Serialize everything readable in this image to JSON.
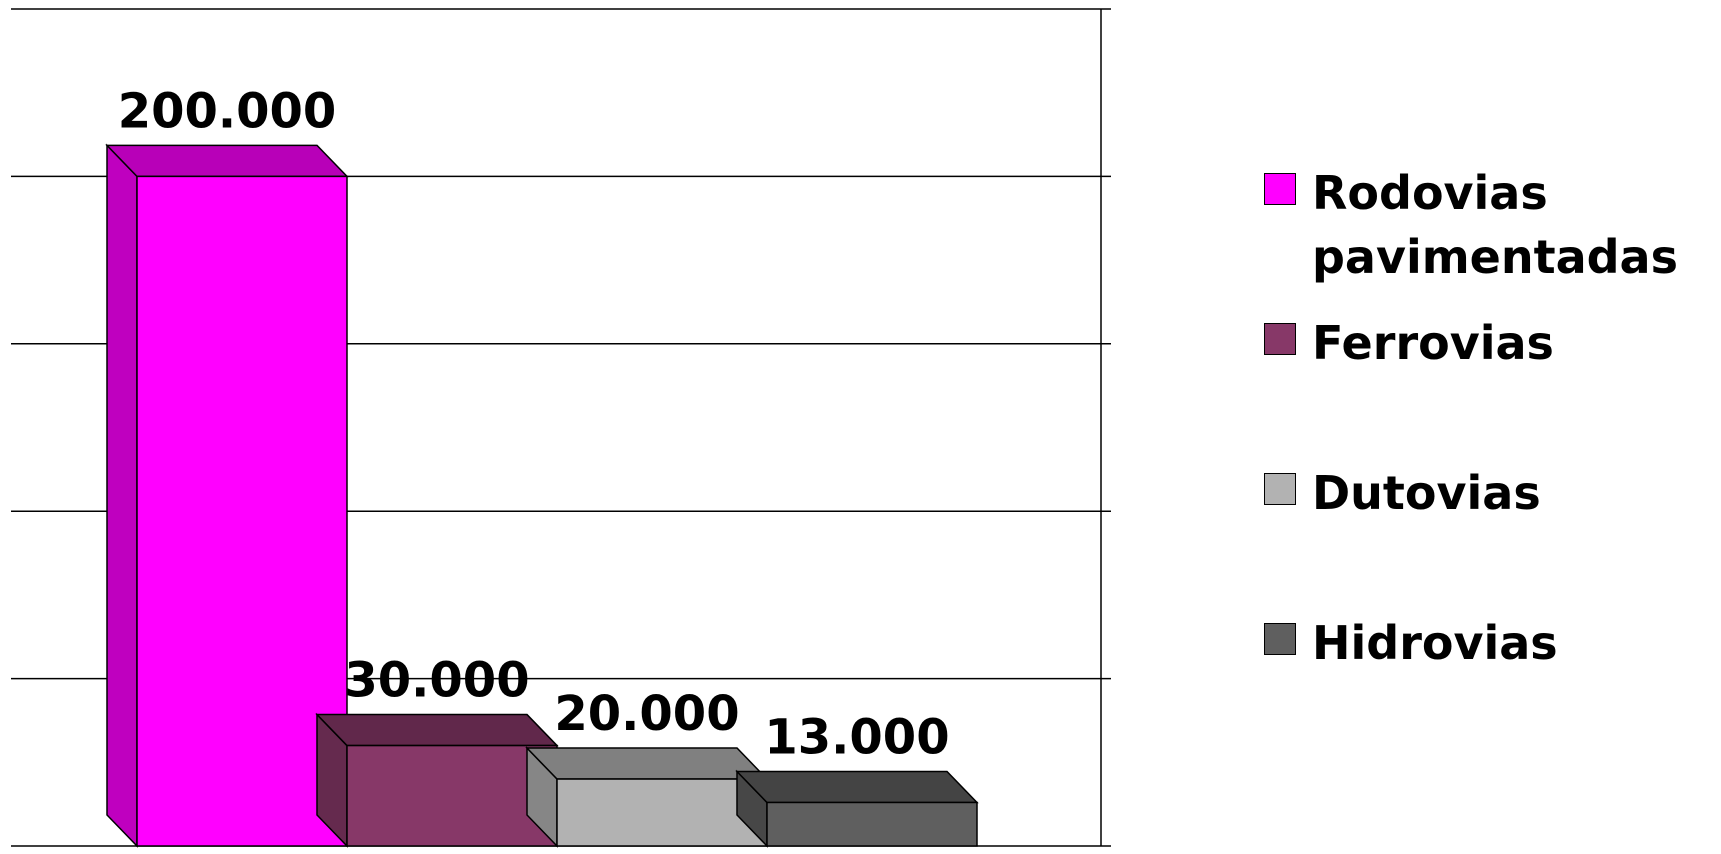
{
  "chart_data": {
    "type": "bar",
    "series": [
      {
        "name": "Rodovias pavimentadas",
        "color": "#ff00ff",
        "values": [
          200000
        ],
        "value_labels": [
          "200.000"
        ]
      },
      {
        "name": "Ferrovias",
        "color": "#873868",
        "values": [
          30000
        ],
        "value_labels": [
          "30.000"
        ]
      },
      {
        "name": "Dutovias",
        "color": "#b2b2b2",
        "values": [
          20000
        ],
        "value_labels": [
          "20.000"
        ]
      },
      {
        "name": "Hidrovias",
        "color": "#5f5f5f",
        "values": [
          13000
        ],
        "value_labels": [
          "13.000"
        ]
      }
    ],
    "ylim": [
      0,
      250000
    ],
    "yticks": [
      0,
      50000,
      100000,
      150000,
      200000,
      250000
    ],
    "grid": true,
    "legend": "right"
  }
}
